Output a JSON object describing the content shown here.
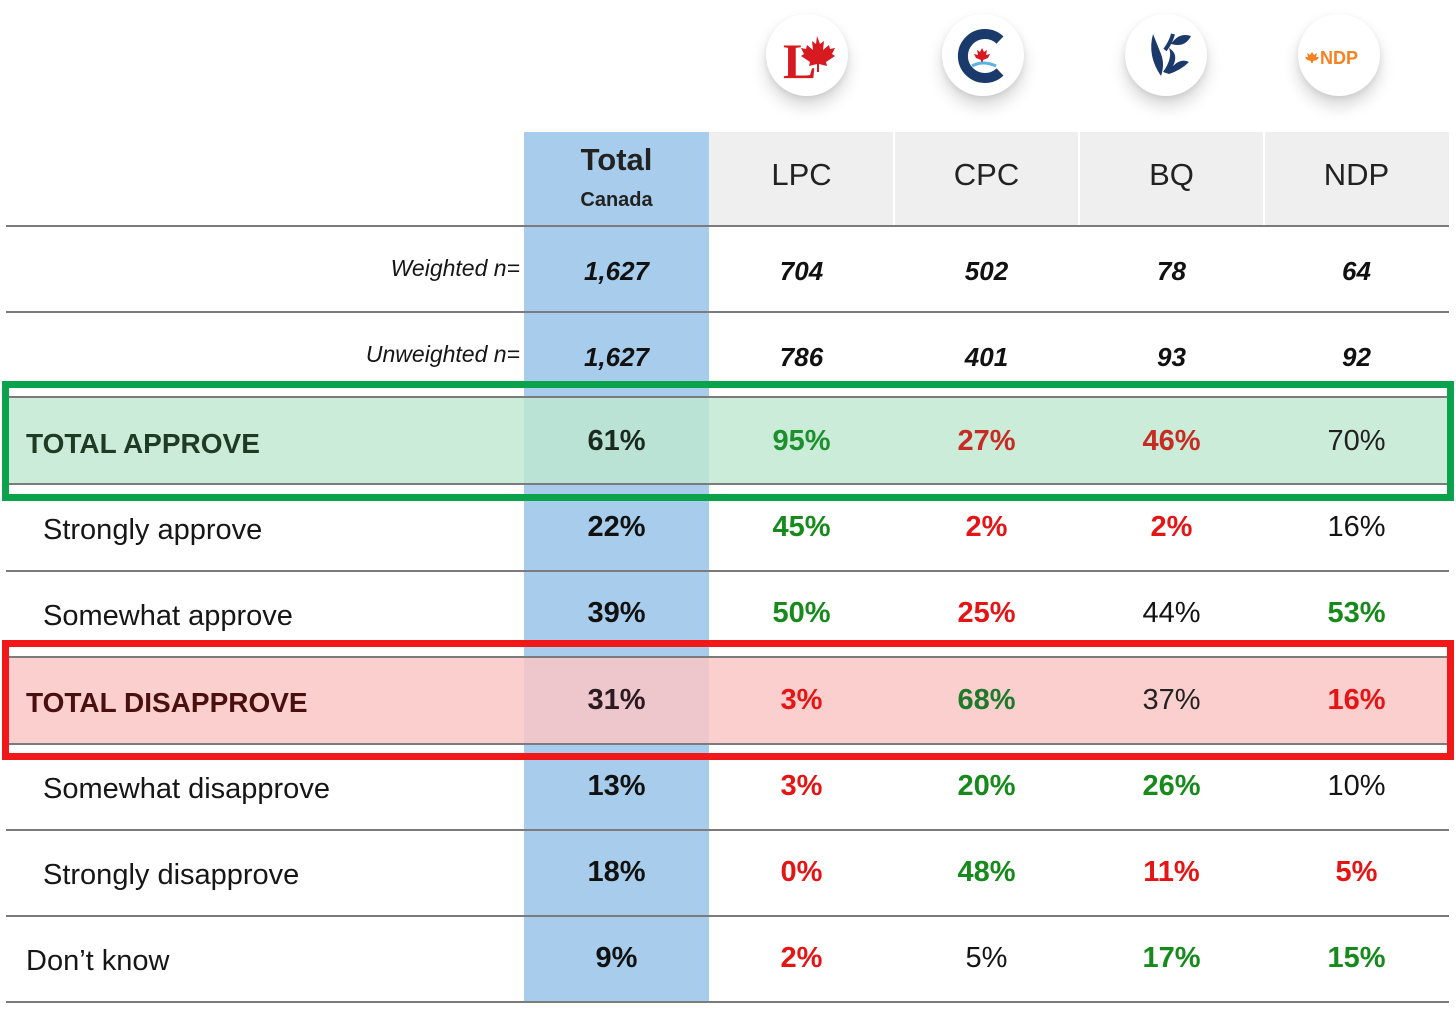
{
  "chart_data": {
    "type": "table",
    "title": "",
    "columns": [
      "Total Canada",
      "LPC",
      "CPC",
      "BQ",
      "NDP"
    ],
    "header": {
      "total_title": "Total",
      "total_subtitle": "Canada",
      "parties": [
        "LPC",
        "CPC",
        "BQ",
        "NDP"
      ],
      "logo_text": {
        "lpc": "L",
        "ndp": "NDP"
      }
    },
    "sample_rows": [
      {
        "label": "Weighted n=",
        "values": [
          "1,627",
          "704",
          "502",
          "78",
          "64"
        ]
      },
      {
        "label": "Unweighted n=",
        "values": [
          "1,627",
          "786",
          "401",
          "93",
          "92"
        ]
      }
    ],
    "total_approve": {
      "label": "TOTAL APPROVE",
      "values": [
        "61%",
        "95%",
        "27%",
        "46%",
        "70%"
      ]
    },
    "approve_rows": [
      {
        "label": "Strongly approve",
        "values": [
          "22%",
          "45%",
          "2%",
          "2%",
          "16%"
        ]
      },
      {
        "label": "Somewhat approve",
        "values": [
          "39%",
          "50%",
          "25%",
          "44%",
          "53%"
        ]
      }
    ],
    "total_disapprove": {
      "label": "TOTAL DISAPPROVE",
      "values": [
        "31%",
        "3%",
        "68%",
        "37%",
        "16%"
      ]
    },
    "disapprove_rows": [
      {
        "label": "Somewhat disapprove",
        "values": [
          "13%",
          "3%",
          "20%",
          "26%",
          "10%"
        ]
      },
      {
        "label": "Strongly disapprove",
        "values": [
          "18%",
          "0%",
          "48%",
          "11%",
          "5%"
        ]
      }
    ],
    "dont_know": {
      "label": "Don’t know",
      "values": [
        "9%",
        "2%",
        "5%",
        "17%",
        "15%"
      ]
    }
  },
  "colors": {
    "total_column": "#a8cdec",
    "approve_band": "#bee8d0",
    "approve_frame": "#0aa24a",
    "disapprove_band": "#fcc6c6",
    "disapprove_frame": "#f01818",
    "significant_high": "#168a1b",
    "significant_low": "#e51515"
  }
}
